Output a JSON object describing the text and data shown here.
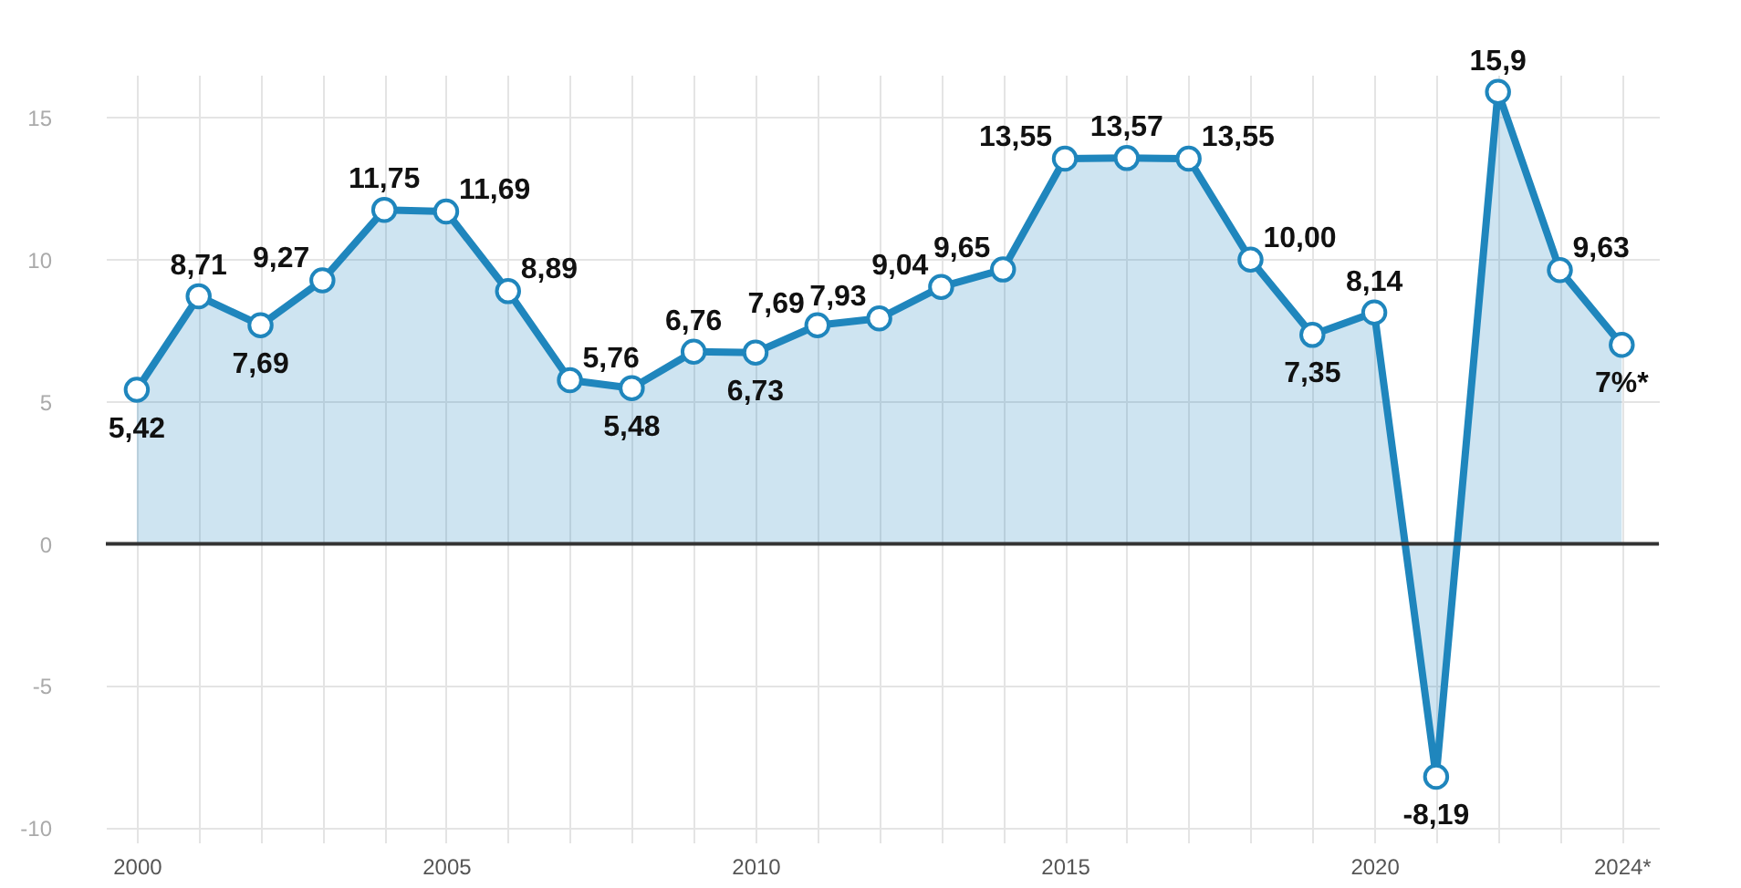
{
  "chart_data": {
    "type": "area",
    "x": [
      2000,
      2001,
      2002,
      2003,
      2004,
      2005,
      2006,
      2007,
      2008,
      2009,
      2010,
      2011,
      2012,
      2013,
      2014,
      2015,
      2016,
      2017,
      2018,
      2019,
      2020,
      2021,
      2022,
      2023,
      2024
    ],
    "series": [
      {
        "color": "#1f86bd",
        "values": [
          5.42,
          8.71,
          7.69,
          9.27,
          11.75,
          11.69,
          8.89,
          5.76,
          5.48,
          6.76,
          6.73,
          7.69,
          7.93,
          9.04,
          9.65,
          13.55,
          13.57,
          13.55,
          10.0,
          7.35,
          8.14,
          -8.19,
          15.9,
          9.63,
          7
        ],
        "value_labels": [
          "5,42",
          "8,71",
          "7,69",
          "9,27",
          "11,75",
          "11,69",
          "8,89",
          "5,76",
          "5,48",
          "6,76",
          "6,73",
          "7,69",
          "7,93",
          "9,04",
          "9,65",
          "13,55",
          "13,57",
          "13,55",
          "10,00",
          "7,35",
          "8,14",
          "-8,19",
          "15,9",
          "9,63",
          "7%*"
        ]
      }
    ],
    "xlim": [
      1999.5,
      2024.6
    ],
    "xticks": [
      2000,
      {
        "value": 2001,
        "label": null
      },
      {
        "value": 2002,
        "label": null
      },
      {
        "value": 2003,
        "label": null
      },
      {
        "value": 2004,
        "label": null
      },
      2005,
      {
        "value": 2006,
        "label": null
      },
      {
        "value": 2007,
        "label": null
      },
      {
        "value": 2008,
        "label": null
      },
      {
        "value": 2009,
        "label": null
      },
      2010,
      {
        "value": 2011,
        "label": null
      },
      {
        "value": 2012,
        "label": null
      },
      {
        "value": 2013,
        "label": null
      },
      {
        "value": 2014,
        "label": null
      },
      2015,
      {
        "value": 2016,
        "label": null
      },
      {
        "value": 2017,
        "label": null
      },
      {
        "value": 2018,
        "label": null
      },
      {
        "value": 2019,
        "label": null
      },
      2020,
      {
        "value": 2021,
        "label": null
      },
      {
        "value": 2022,
        "label": null
      },
      {
        "value": 2023,
        "label": null
      },
      {
        "value": 2024,
        "label": "2024*"
      }
    ],
    "ylim": [
      -10.5,
      16.5
    ],
    "yticks": [
      -10,
      -5,
      0,
      5,
      10,
      15
    ],
    "grid": true,
    "marker": "circle",
    "line_style": "solid",
    "ref_lines": [
      {
        "axis": "y",
        "value": 0,
        "color": "#333333"
      }
    ]
  }
}
